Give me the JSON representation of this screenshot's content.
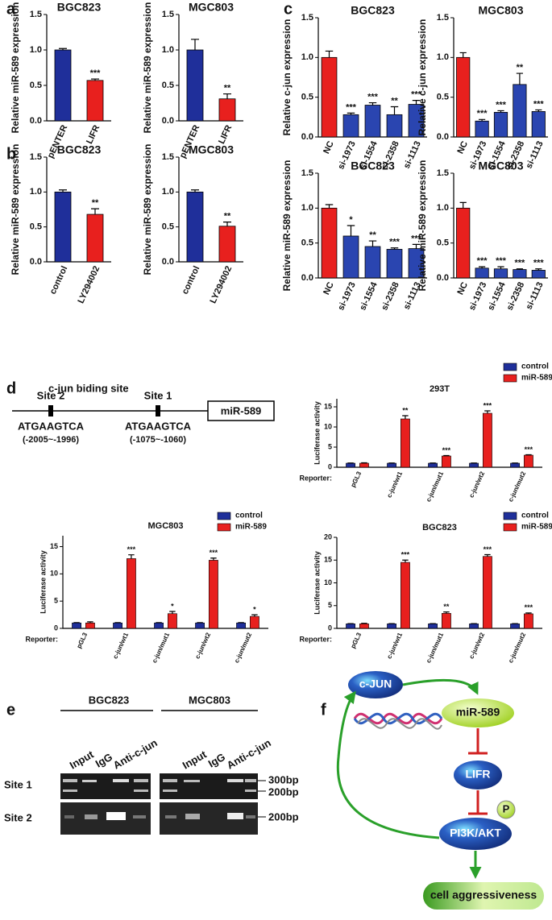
{
  "panels": [
    "a",
    "b",
    "c",
    "d",
    "e",
    "f"
  ],
  "chart_data": [
    {
      "type": "bar",
      "title": "BGC823",
      "ylabel": "Relative miR-589 expression",
      "categories": [
        "pENTER",
        "LIFR"
      ],
      "values": [
        1.0,
        0.57
      ],
      "errors": [
        0.02,
        0.02
      ],
      "annotations": [
        null,
        "***"
      ],
      "colors": [
        "#1f2f9a",
        "#e8201e"
      ],
      "ylim": [
        0,
        1.5
      ],
      "yticks": [
        {
          "value": 0,
          "label": "0.0"
        },
        0.5,
        {
          "value": 1,
          "label": "1.0"
        },
        1.5
      ]
    },
    {
      "type": "bar",
      "title": "MGC803",
      "ylabel": "Relative miR-589 expression",
      "categories": [
        "pENTER",
        "LIFR"
      ],
      "values": [
        1.0,
        0.31
      ],
      "errors": [
        0.15,
        0.07
      ],
      "annotations": [
        null,
        "**"
      ],
      "colors": [
        "#1f2f9a",
        "#e8201e"
      ],
      "ylim": [
        0,
        1.5
      ],
      "yticks": [
        {
          "value": 0,
          "label": "0.0"
        },
        0.5,
        {
          "value": 1,
          "label": "1.0"
        },
        1.5
      ]
    },
    {
      "type": "bar",
      "title": "BGC823",
      "ylabel": "Relative miR-589 expression",
      "categories": [
        "control",
        "LY294002"
      ],
      "values": [
        1.0,
        0.68
      ],
      "errors": [
        0.03,
        0.08
      ],
      "annotations": [
        null,
        "**"
      ],
      "colors": [
        "#1f2f9a",
        "#e8201e"
      ],
      "ylim": [
        0,
        1.5
      ],
      "yticks": [
        {
          "value": 0,
          "label": "0.0"
        },
        0.5,
        {
          "value": 1,
          "label": "1.0"
        },
        1.5
      ]
    },
    {
      "type": "bar",
      "title": "MGC803",
      "ylabel": "Relative miR-589 expression",
      "categories": [
        "control",
        "LY294002"
      ],
      "values": [
        1.0,
        0.51
      ],
      "errors": [
        0.03,
        0.06
      ],
      "annotations": [
        null,
        "**"
      ],
      "colors": [
        "#1f2f9a",
        "#e8201e"
      ],
      "ylim": [
        0,
        1.5
      ],
      "yticks": [
        {
          "value": 0,
          "label": "0.0"
        },
        0.5,
        {
          "value": 1,
          "label": "1.0"
        },
        1.5
      ]
    },
    {
      "type": "bar",
      "title": "BGC823",
      "ylabel": "Relative c-jun expression",
      "categories": [
        "NC",
        "si-1973",
        "si-1554",
        "si-2358",
        "si-1113"
      ],
      "values": [
        1.0,
        0.28,
        0.4,
        0.28,
        0.41
      ],
      "errors": [
        0.08,
        0.02,
        0.03,
        0.1,
        0.05
      ],
      "annotations": [
        null,
        "***",
        "***",
        "**",
        "***"
      ],
      "colors": [
        "#e8201e",
        "#2a45b0",
        "#2a45b0",
        "#2a45b0",
        "#2a45b0"
      ],
      "ylim": [
        0,
        1.5
      ],
      "yticks": [
        {
          "value": 0,
          "label": "0.0"
        },
        0.5,
        {
          "value": 1,
          "label": "1.0"
        },
        1.5
      ]
    },
    {
      "type": "bar",
      "title": "MGC803",
      "ylabel": "Relative c-jun expression",
      "categories": [
        "NC",
        "si-1973",
        "si-1554",
        "si-2358",
        "si-1113"
      ],
      "values": [
        1.0,
        0.2,
        0.31,
        0.66,
        0.32
      ],
      "errors": [
        0.06,
        0.02,
        0.02,
        0.14,
        0.02
      ],
      "annotations": [
        null,
        "***",
        "***",
        "**",
        "***"
      ],
      "colors": [
        "#e8201e",
        "#2a45b0",
        "#2a45b0",
        "#2a45b0",
        "#2a45b0"
      ],
      "ylim": [
        0,
        1.5
      ],
      "yticks": [
        {
          "value": 0,
          "label": "0.0"
        },
        0.5,
        {
          "value": 1,
          "label": "1.0"
        },
        1.5
      ]
    },
    {
      "type": "bar",
      "title": "BGC823",
      "ylabel": "Relative miR-589 expression",
      "categories": [
        "NC",
        "si-1973",
        "si-1554",
        "si-2358",
        "si-1113"
      ],
      "values": [
        1.0,
        0.6,
        0.45,
        0.41,
        0.42
      ],
      "errors": [
        0.05,
        0.15,
        0.08,
        0.02,
        0.06
      ],
      "annotations": [
        null,
        "*",
        "**",
        "***",
        "***"
      ],
      "colors": [
        "#e8201e",
        "#2a45b0",
        "#2a45b0",
        "#2a45b0",
        "#2a45b0"
      ],
      "ylim": [
        0,
        1.5
      ],
      "yticks": [
        {
          "value": 0,
          "label": "0.0"
        },
        0.5,
        {
          "value": 1,
          "label": "1.0"
        },
        1.5
      ]
    },
    {
      "type": "bar",
      "title": "MGC803",
      "ylabel": "Relative miR-589 expression",
      "categories": [
        "NC",
        "si-1973",
        "si-1554",
        "si-2358",
        "si-1113"
      ],
      "values": [
        1.0,
        0.14,
        0.13,
        0.12,
        0.11
      ],
      "errors": [
        0.08,
        0.02,
        0.03,
        0.01,
        0.02
      ],
      "annotations": [
        null,
        "***",
        "***",
        "***",
        "***"
      ],
      "colors": [
        "#e8201e",
        "#2a45b0",
        "#2a45b0",
        "#2a45b0",
        "#2a45b0"
      ],
      "ylim": [
        0,
        1.5
      ],
      "yticks": [
        {
          "value": 0,
          "label": "0.0"
        },
        0.5,
        {
          "value": 1,
          "label": "1.0"
        },
        1.5
      ]
    },
    {
      "type": "bar",
      "title": "293T",
      "ylabel": "Luciferase activity",
      "xlabel": "Reporter:",
      "categories": [
        "pGL3",
        "c-jun/wt1",
        "c-jun/mut1",
        "c-jun/wt2",
        "c-jun/mut2"
      ],
      "series": [
        {
          "name": "control",
          "color": "#1f2f9a",
          "values": [
            1.0,
            1.0,
            1.0,
            1.0,
            1.0
          ],
          "errors": [
            0.05,
            0.05,
            0.05,
            0.05,
            0.05
          ]
        },
        {
          "name": "miR-589",
          "color": "#e8201e",
          "values": [
            1.0,
            12.0,
            2.8,
            13.4,
            3.0
          ],
          "errors": [
            0.1,
            0.8,
            0.1,
            0.6,
            0.1
          ],
          "annotations": [
            null,
            "**",
            "***",
            "***",
            "***"
          ]
        }
      ],
      "ylim": [
        0,
        17
      ],
      "yticks": [
        0,
        5,
        10,
        15
      ]
    },
    {
      "type": "bar",
      "title": "MGC803",
      "ylabel": "Luciferase activity",
      "xlabel": "Reporter:",
      "categories": [
        "pGL3",
        "c-jun/wt1",
        "c-jun/mut1",
        "c-jun/wt2",
        "c-jun/mut2"
      ],
      "series": [
        {
          "name": "control",
          "color": "#1f2f9a",
          "values": [
            1.0,
            1.0,
            1.0,
            1.0,
            1.0
          ],
          "errors": [
            0.05,
            0.05,
            0.05,
            0.05,
            0.05
          ]
        },
        {
          "name": "miR-589",
          "color": "#e8201e",
          "values": [
            1.0,
            12.8,
            2.7,
            12.5,
            2.2
          ],
          "errors": [
            0.2,
            0.7,
            0.4,
            0.4,
            0.3
          ],
          "annotations": [
            null,
            "***",
            "*",
            "***",
            "*"
          ]
        }
      ],
      "ylim": [
        0,
        17
      ],
      "yticks": [
        0,
        5,
        10,
        15
      ]
    },
    {
      "type": "bar",
      "title": "BGC823",
      "ylabel": "Luciferase activity",
      "xlabel": "Reporter:",
      "categories": [
        "pGL3",
        "c-jun/wt1",
        "c-jun/mut1",
        "c-jun/wt2",
        "c-jun/mut2"
      ],
      "series": [
        {
          "name": "control",
          "color": "#1f2f9a",
          "values": [
            1.0,
            1.0,
            1.0,
            1.0,
            1.0
          ],
          "errors": [
            0.05,
            0.05,
            0.05,
            0.05,
            0.05
          ]
        },
        {
          "name": "miR-589",
          "color": "#e8201e",
          "values": [
            1.0,
            14.5,
            3.3,
            15.8,
            3.2
          ],
          "errors": [
            0.1,
            0.5,
            0.3,
            0.4,
            0.2
          ],
          "annotations": [
            null,
            "***",
            "**",
            "***",
            "***"
          ]
        }
      ],
      "ylim": [
        0,
        20
      ],
      "yticks": [
        0,
        5,
        10,
        15,
        20
      ]
    }
  ],
  "diagram": {
    "title": "c-jun biding site",
    "sites": [
      {
        "label": "Site 2",
        "sequence": "ATGAAGTCA",
        "range": "(-2005~-1996)"
      },
      {
        "label": "Site 1",
        "sequence": "ATGAAGTCA",
        "range": "(-1075~-1060)"
      }
    ],
    "gene": "miR-589"
  },
  "gel": {
    "groups": [
      {
        "name": "BGC823",
        "lanes": [
          "Input",
          "IgG",
          "Anti-c-jun"
        ]
      },
      {
        "name": "MGC803",
        "lanes": [
          "Input",
          "IgG",
          "Anti-c-jun"
        ]
      }
    ],
    "rows": [
      "Site 1",
      "Site 2"
    ],
    "markers": [
      "300bp",
      "200bp",
      "200bp"
    ]
  },
  "pathway": {
    "nodes": [
      "c-JUN",
      "miR-589",
      "LIFR",
      "PI3K/AKT",
      "cell aggressiveness"
    ],
    "phospho": "P"
  }
}
